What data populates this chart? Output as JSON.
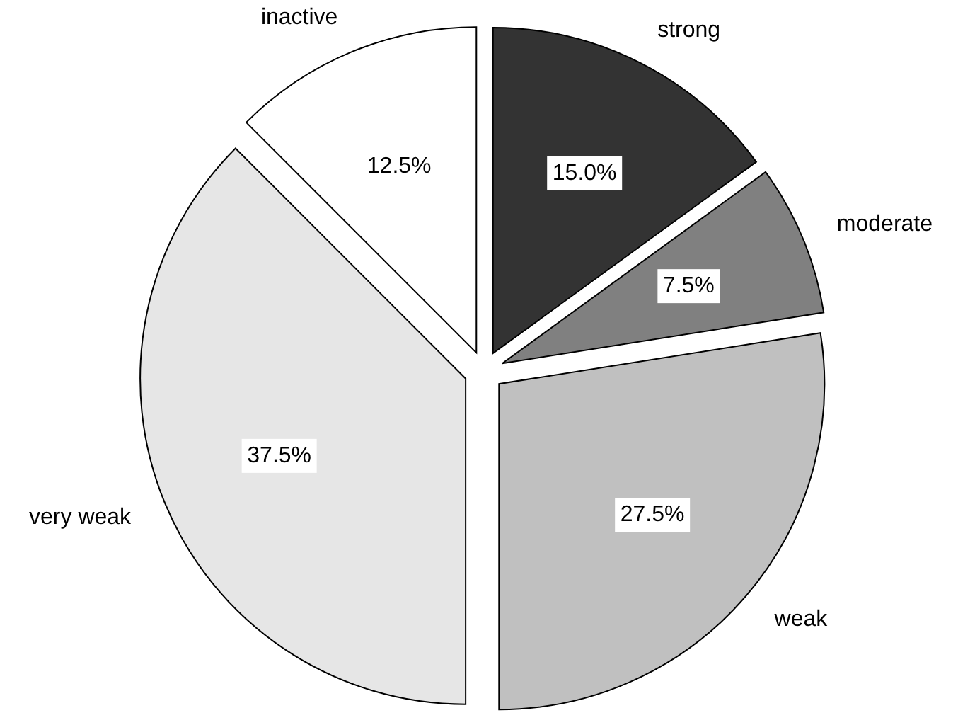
{
  "chart_data": {
    "type": "pie",
    "categories": [
      "strong",
      "moderate",
      "weak",
      "very weak",
      "inactive"
    ],
    "values": [
      15.0,
      7.5,
      27.5,
      37.5,
      12.5
    ],
    "colors": [
      "#333333",
      "#808080",
      "#c0c0c0",
      "#e6e6e6",
      "#ffffff"
    ],
    "value_labels": [
      "15.0%",
      "7.5%",
      "27.5%",
      "37.5%",
      "12.5%"
    ]
  }
}
